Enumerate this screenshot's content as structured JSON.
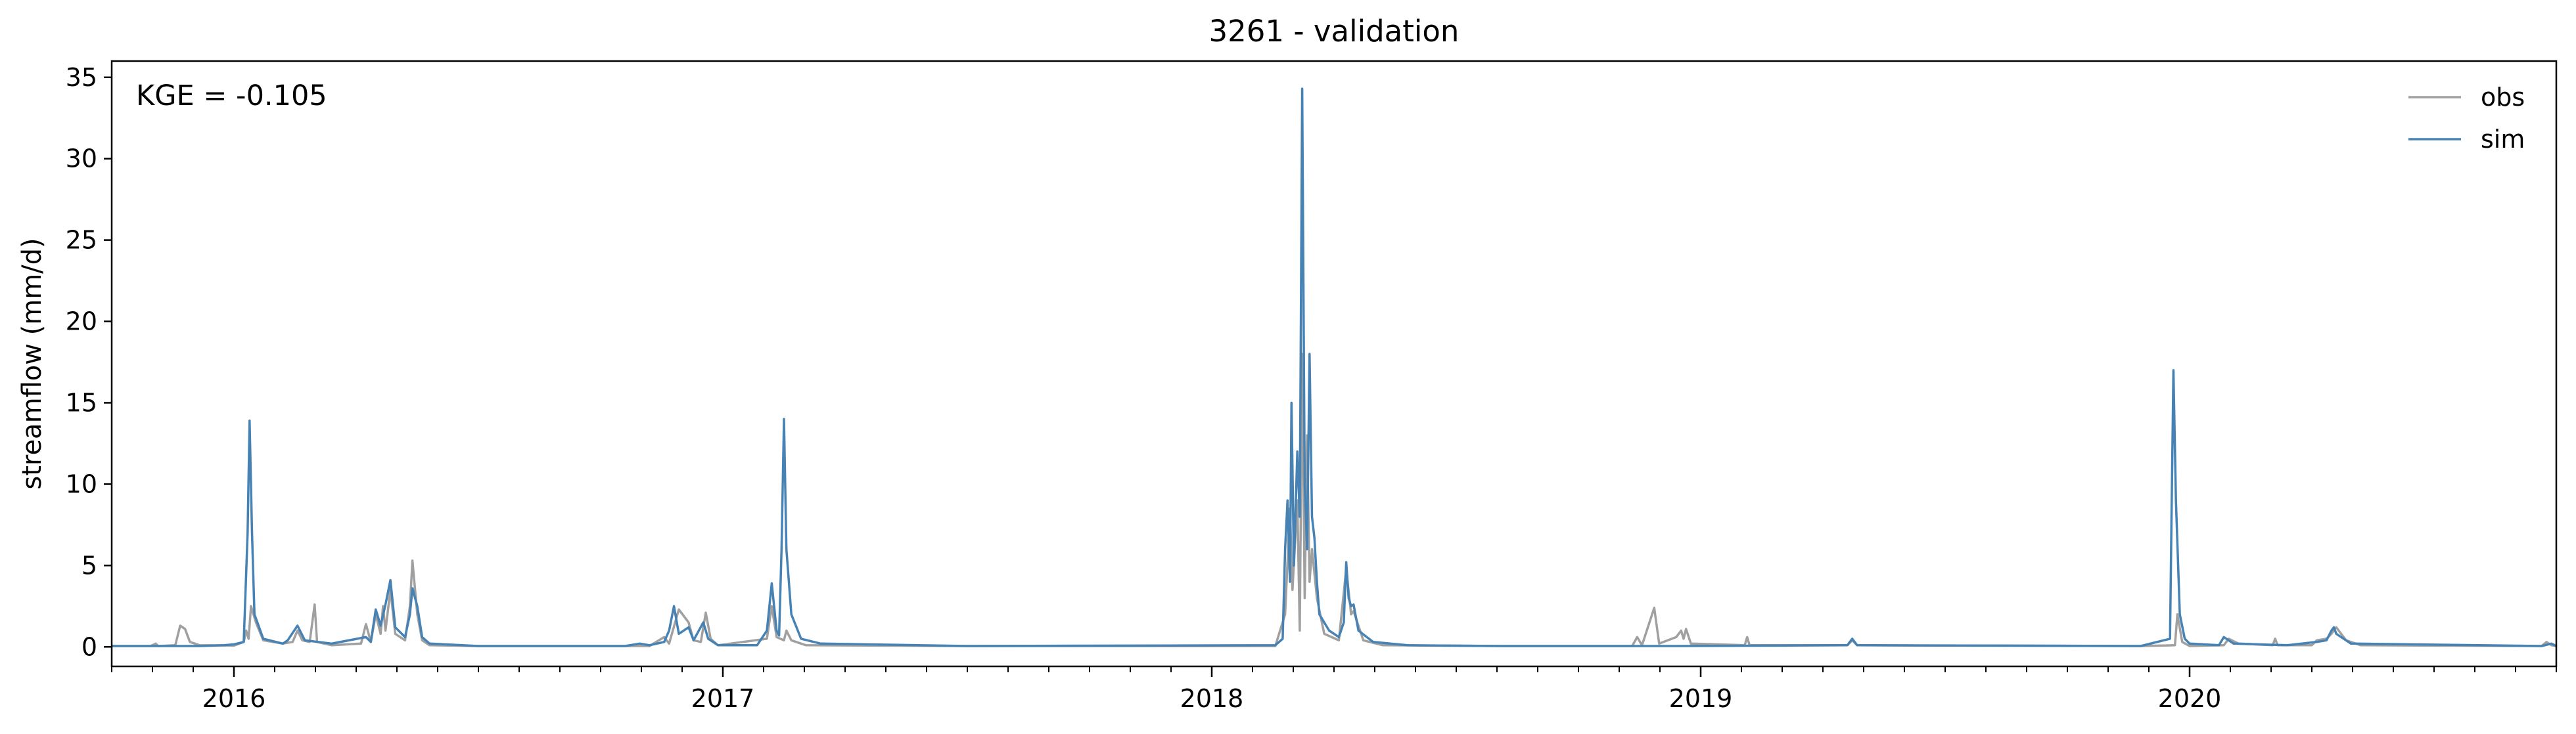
{
  "chart_data": {
    "type": "line",
    "title": "3261 - validation",
    "xlabel": "",
    "ylabel": "streamflow (mm/d)",
    "ylim": [
      -1.2,
      36
    ],
    "yticks": [
      0,
      5,
      10,
      15,
      20,
      25,
      30,
      35
    ],
    "xlim": [
      2015.75,
      2020.75
    ],
    "xticks": [
      2016,
      2017,
      2018,
      2019,
      2020
    ],
    "xtick_labels": [
      "2016",
      "2017",
      "2018",
      "2019",
      "2020"
    ],
    "annotation": "KGE = -0.105",
    "legend_position": "top-right",
    "series": [
      {
        "name": "obs",
        "color": "#a0a0a0",
        "points": [
          [
            2015.75,
            0.05
          ],
          [
            2015.83,
            0.05
          ],
          [
            2015.84,
            0.2
          ],
          [
            2015.845,
            0.05
          ],
          [
            2015.88,
            0.1
          ],
          [
            2015.89,
            1.3
          ],
          [
            2015.9,
            1.1
          ],
          [
            2015.91,
            0.3
          ],
          [
            2015.93,
            0.1
          ],
          [
            2016.0,
            0.08
          ],
          [
            2016.02,
            0.3
          ],
          [
            2016.025,
            1.0
          ],
          [
            2016.03,
            0.5
          ],
          [
            2016.035,
            2.5
          ],
          [
            2016.045,
            1.5
          ],
          [
            2016.06,
            0.4
          ],
          [
            2016.1,
            0.2
          ],
          [
            2016.12,
            0.3
          ],
          [
            2016.13,
            1.0
          ],
          [
            2016.14,
            0.4
          ],
          [
            2016.155,
            0.3
          ],
          [
            2016.165,
            2.6
          ],
          [
            2016.17,
            0.3
          ],
          [
            2016.2,
            0.1
          ],
          [
            2016.26,
            0.2
          ],
          [
            2016.27,
            1.4
          ],
          [
            2016.28,
            0.3
          ],
          [
            2016.29,
            2.0
          ],
          [
            2016.3,
            0.8
          ],
          [
            2016.305,
            2.5
          ],
          [
            2016.31,
            1.0
          ],
          [
            2016.32,
            3.5
          ],
          [
            2016.33,
            0.8
          ],
          [
            2016.35,
            0.4
          ],
          [
            2016.36,
            2.5
          ],
          [
            2016.365,
            5.3
          ],
          [
            2016.375,
            2.0
          ],
          [
            2016.385,
            0.4
          ],
          [
            2016.4,
            0.1
          ],
          [
            2016.5,
            0.05
          ],
          [
            2016.85,
            0.05
          ],
          [
            2016.88,
            0.6
          ],
          [
            2016.89,
            0.2
          ],
          [
            2016.91,
            2.3
          ],
          [
            2016.93,
            1.5
          ],
          [
            2016.94,
            0.4
          ],
          [
            2016.955,
            0.3
          ],
          [
            2016.965,
            2.1
          ],
          [
            2016.975,
            0.5
          ],
          [
            2016.99,
            0.1
          ],
          [
            2017.09,
            0.5
          ],
          [
            2017.1,
            2.5
          ],
          [
            2017.11,
            0.6
          ],
          [
            2017.125,
            0.4
          ],
          [
            2017.13,
            1.0
          ],
          [
            2017.14,
            0.4
          ],
          [
            2017.17,
            0.1
          ],
          [
            2017.5,
            0.05
          ],
          [
            2018.13,
            0.05
          ],
          [
            2018.15,
            2.0
          ],
          [
            2018.16,
            8.5
          ],
          [
            2018.165,
            3.5
          ],
          [
            2018.175,
            9.0
          ],
          [
            2018.18,
            1.0
          ],
          [
            2018.185,
            18.0
          ],
          [
            2018.19,
            3.0
          ],
          [
            2018.195,
            13.0
          ],
          [
            2018.2,
            4.0
          ],
          [
            2018.205,
            6.0
          ],
          [
            2018.215,
            3.0
          ],
          [
            2018.23,
            0.8
          ],
          [
            2018.26,
            0.4
          ],
          [
            2018.275,
            4.8
          ],
          [
            2018.285,
            2.0
          ],
          [
            2018.29,
            2.2
          ],
          [
            2018.31,
            0.4
          ],
          [
            2018.35,
            0.1
          ],
          [
            2018.6,
            0.05
          ],
          [
            2018.86,
            0.05
          ],
          [
            2018.87,
            0.6
          ],
          [
            2018.88,
            0.1
          ],
          [
            2018.905,
            2.4
          ],
          [
            2018.915,
            0.2
          ],
          [
            2018.95,
            0.6
          ],
          [
            2018.96,
            1.0
          ],
          [
            2018.965,
            0.5
          ],
          [
            2018.97,
            1.1
          ],
          [
            2018.98,
            0.2
          ],
          [
            2019.09,
            0.1
          ],
          [
            2019.095,
            0.6
          ],
          [
            2019.1,
            0.1
          ],
          [
            2019.3,
            0.1
          ],
          [
            2019.31,
            0.4
          ],
          [
            2019.32,
            0.1
          ],
          [
            2019.9,
            0.05
          ],
          [
            2019.97,
            0.1
          ],
          [
            2019.975,
            2.0
          ],
          [
            2019.985,
            0.3
          ],
          [
            2020.0,
            0.05
          ],
          [
            2020.07,
            0.1
          ],
          [
            2020.08,
            0.5
          ],
          [
            2020.1,
            0.2
          ],
          [
            2020.17,
            0.1
          ],
          [
            2020.175,
            0.5
          ],
          [
            2020.18,
            0.1
          ],
          [
            2020.25,
            0.1
          ],
          [
            2020.26,
            0.4
          ],
          [
            2020.28,
            0.5
          ],
          [
            2020.29,
            0.8
          ],
          [
            2020.3,
            1.2
          ],
          [
            2020.32,
            0.4
          ],
          [
            2020.35,
            0.1
          ],
          [
            2020.72,
            0.05
          ],
          [
            2020.73,
            0.3
          ],
          [
            2020.74,
            0.1
          ],
          [
            2020.75,
            0.05
          ]
        ]
      },
      {
        "name": "sim",
        "color": "#4682b4",
        "points": [
          [
            2015.75,
            0.05
          ],
          [
            2015.93,
            0.05
          ],
          [
            2015.98,
            0.1
          ],
          [
            2016.0,
            0.15
          ],
          [
            2016.02,
            0.3
          ],
          [
            2016.028,
            7.0
          ],
          [
            2016.032,
            13.9
          ],
          [
            2016.037,
            7.0
          ],
          [
            2016.042,
            2.0
          ],
          [
            2016.06,
            0.5
          ],
          [
            2016.1,
            0.2
          ],
          [
            2016.11,
            0.4
          ],
          [
            2016.13,
            1.3
          ],
          [
            2016.145,
            0.4
          ],
          [
            2016.2,
            0.2
          ],
          [
            2016.27,
            0.6
          ],
          [
            2016.28,
            0.3
          ],
          [
            2016.29,
            2.3
          ],
          [
            2016.3,
            1.3
          ],
          [
            2016.31,
            2.6
          ],
          [
            2016.32,
            4.1
          ],
          [
            2016.33,
            1.2
          ],
          [
            2016.35,
            0.6
          ],
          [
            2016.36,
            2.0
          ],
          [
            2016.365,
            3.6
          ],
          [
            2016.375,
            2.5
          ],
          [
            2016.385,
            0.6
          ],
          [
            2016.4,
            0.2
          ],
          [
            2016.5,
            0.05
          ],
          [
            2016.8,
            0.05
          ],
          [
            2016.83,
            0.2
          ],
          [
            2016.85,
            0.1
          ],
          [
            2016.88,
            0.3
          ],
          [
            2016.89,
            1.0
          ],
          [
            2016.9,
            2.5
          ],
          [
            2016.91,
            0.8
          ],
          [
            2016.93,
            1.2
          ],
          [
            2016.94,
            0.4
          ],
          [
            2016.96,
            1.5
          ],
          [
            2016.97,
            0.5
          ],
          [
            2016.99,
            0.1
          ],
          [
            2017.07,
            0.1
          ],
          [
            2017.09,
            1.0
          ],
          [
            2017.1,
            3.9
          ],
          [
            2017.11,
            1.0
          ],
          [
            2017.115,
            0.7
          ],
          [
            2017.12,
            6.0
          ],
          [
            2017.125,
            14.0
          ],
          [
            2017.13,
            6.0
          ],
          [
            2017.14,
            2.0
          ],
          [
            2017.16,
            0.5
          ],
          [
            2017.2,
            0.2
          ],
          [
            2017.5,
            0.05
          ],
          [
            2018.13,
            0.1
          ],
          [
            2018.145,
            0.5
          ],
          [
            2018.15,
            6.0
          ],
          [
            2018.155,
            9.0
          ],
          [
            2018.16,
            4.0
          ],
          [
            2018.163,
            15.0
          ],
          [
            2018.168,
            5.0
          ],
          [
            2018.175,
            12.0
          ],
          [
            2018.18,
            8.0
          ],
          [
            2018.185,
            34.3
          ],
          [
            2018.19,
            10.0
          ],
          [
            2018.195,
            6.0
          ],
          [
            2018.2,
            18.0
          ],
          [
            2018.205,
            8.0
          ],
          [
            2018.21,
            6.7
          ],
          [
            2018.215,
            4.0
          ],
          [
            2018.22,
            2.0
          ],
          [
            2018.24,
            1.0
          ],
          [
            2018.26,
            0.6
          ],
          [
            2018.27,
            1.5
          ],
          [
            2018.275,
            5.2
          ],
          [
            2018.28,
            3.0
          ],
          [
            2018.285,
            2.5
          ],
          [
            2018.29,
            2.6
          ],
          [
            2018.3,
            1.0
          ],
          [
            2018.33,
            0.3
          ],
          [
            2018.4,
            0.1
          ],
          [
            2018.6,
            0.05
          ],
          [
            2018.95,
            0.05
          ],
          [
            2019.3,
            0.1
          ],
          [
            2019.31,
            0.5
          ],
          [
            2019.32,
            0.1
          ],
          [
            2019.9,
            0.05
          ],
          [
            2019.96,
            0.5
          ],
          [
            2019.963,
            8.0
          ],
          [
            2019.967,
            17.0
          ],
          [
            2019.972,
            9.0
          ],
          [
            2019.98,
            2.0
          ],
          [
            2019.99,
            0.5
          ],
          [
            2020.0,
            0.2
          ],
          [
            2020.06,
            0.1
          ],
          [
            2020.07,
            0.6
          ],
          [
            2020.09,
            0.2
          ],
          [
            2020.2,
            0.1
          ],
          [
            2020.26,
            0.3
          ],
          [
            2020.28,
            0.4
          ],
          [
            2020.29,
            1.0
          ],
          [
            2020.295,
            1.2
          ],
          [
            2020.3,
            0.8
          ],
          [
            2020.33,
            0.2
          ],
          [
            2020.72,
            0.05
          ],
          [
            2020.74,
            0.2
          ],
          [
            2020.75,
            0.05
          ]
        ]
      }
    ]
  }
}
